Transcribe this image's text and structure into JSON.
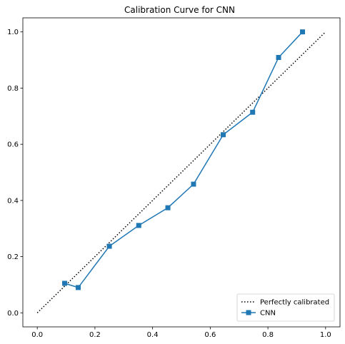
{
  "chart_data": {
    "type": "line",
    "title": "Calibration Curve for CNN",
    "xlabel": "",
    "ylabel": "",
    "xlim": [
      -0.05,
      1.05
    ],
    "ylim": [
      -0.05,
      1.05
    ],
    "x_ticks": [
      0.0,
      0.2,
      0.4,
      0.6,
      0.8,
      1.0
    ],
    "y_ticks": [
      0.0,
      0.2,
      0.4,
      0.6,
      0.8,
      1.0
    ],
    "x_tick_labels": [
      "0.0",
      "0.2",
      "0.4",
      "0.6",
      "0.8",
      "1.0"
    ],
    "y_tick_labels": [
      "0.0",
      "0.2",
      "0.4",
      "0.6",
      "0.8",
      "1.0"
    ],
    "grid": false,
    "legend_position": "bottom-right",
    "series": [
      {
        "name": "Perfectly calibrated",
        "style": "dotted",
        "color": "#000000",
        "marker": "none",
        "x": [
          0.0,
          1.0
        ],
        "y": [
          0.0,
          1.0
        ]
      },
      {
        "name": "CNN",
        "style": "solid",
        "color": "#1f77b4",
        "marker": "square",
        "x": [
          0.095,
          0.142,
          0.25,
          0.352,
          0.453,
          0.542,
          0.645,
          0.747,
          0.837,
          0.92
        ],
        "y": [
          0.105,
          0.09,
          0.237,
          0.311,
          0.374,
          0.458,
          0.634,
          0.714,
          0.909,
          1.0
        ]
      }
    ]
  }
}
